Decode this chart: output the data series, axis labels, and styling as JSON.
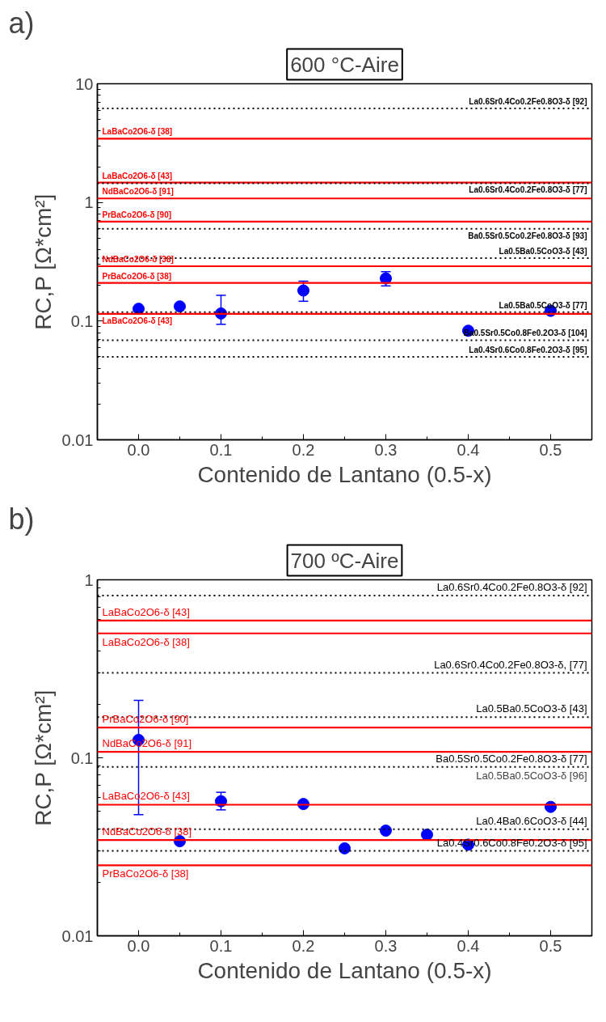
{
  "chart_data": [
    {
      "type": "scatter",
      "title": "600 °C-Aire",
      "xlabel": "Contenido de Lantano (0.5-x)",
      "ylabel": "RC,P [Ω*cm²]",
      "annotations": [
        "a)"
      ],
      "x": [
        0.0,
        0.05,
        0.1,
        0.2,
        0.3,
        0.4,
        0.5
      ],
      "series": [
        {
          "color": "#0000ff",
          "values": [
            0.127,
            0.133,
            0.116,
            0.181,
            0.229,
            0.083,
            0.122
          ],
          "errors": [
            null,
            null,
            [
              0.094,
              0.165
            ],
            [
              0.147,
              0.217
            ],
            [
              0.198,
              0.261
            ],
            null,
            null
          ]
        }
      ],
      "log": "y",
      "xlim": [
        -0.05,
        0.55
      ],
      "ylim": [
        0.01,
        10
      ],
      "xticks": [
        {
          "value": 0,
          "label": "0.0"
        },
        0.1,
        0.2,
        0.3,
        0.4,
        0.5
      ],
      "yticks": [
        0.01,
        0.1,
        1,
        10
      ],
      "grid": false,
      "marker": "circle",
      "ref_lines": [
        {
          "axis": "y",
          "value": 6.2,
          "label": "La0.6Sr0.4Co0.2Fe0.8O3-δ [92]",
          "color": "#000000",
          "line_style": "dotted"
        },
        {
          "axis": "y",
          "value": 3.45,
          "label": "LaBaCo2O6-δ [38]",
          "color": "#ff0000",
          "line_style": "solid"
        },
        {
          "axis": "y",
          "value": 1.47,
          "label": "LaBaCo2O6-δ [43]",
          "color": "#ff0000",
          "line_style": "solid"
        },
        {
          "axis": "y",
          "value": 1.45,
          "label": "La0.6Sr0.4Co0.2Fe0.8O3-δ [77]",
          "color": "#000000",
          "line_style": "dotted"
        },
        {
          "axis": "y",
          "value": 1.08,
          "label": "NdBaCo2O6-δ [91]",
          "color": "#ff0000",
          "line_style": "solid"
        },
        {
          "axis": "y",
          "value": 0.69,
          "label": "PrBaCo2O6-δ [90]",
          "color": "#ff0000",
          "line_style": "solid"
        },
        {
          "axis": "y",
          "value": 0.6,
          "label": "Ba0.5Sr0.5Co0.2Fe0.8O3-δ [93]",
          "color": "#000000",
          "line_style": "dotted"
        },
        {
          "axis": "y",
          "value": 0.34,
          "label": "La0.5Ba0.5CoO3-δ [43]",
          "color": "#000000",
          "line_style": "dotted"
        },
        {
          "axis": "y",
          "value": 0.29,
          "label": "NdBaCo2O6-δ [38]",
          "color": "#ff0000",
          "line_style": "solid"
        },
        {
          "axis": "y",
          "value": 0.21,
          "label": "PrBaCo2O6-δ [38]",
          "color": "#ff0000",
          "line_style": "solid"
        },
        {
          "axis": "y",
          "value": 0.119,
          "label": "La0.5Ba0.5CoO3-δ [77]",
          "color": "#000000",
          "line_style": "dotted"
        },
        {
          "axis": "y",
          "value": 0.115,
          "label": "LaBaCo2O6-δ [43]",
          "color": "#ff0000",
          "line_style": "solid"
        },
        {
          "axis": "y",
          "value": 0.069,
          "label": "Ba0.5Sr0.5Co0.8Fe0.2O3-δ [104]",
          "color": "#000000",
          "line_style": "dotted"
        },
        {
          "axis": "y",
          "value": 0.05,
          "label": "La0.4Sr0.6Co0.8Fe0.2O3-δ [95]",
          "color": "#000000",
          "line_style": "dotted"
        }
      ]
    },
    {
      "type": "scatter",
      "title": "700 ºC-Aire",
      "xlabel": "Contenido de Lantano (0.5-x)",
      "ylabel": "RC,P [Ω*cm²]",
      "annotations": [
        "b)",
        {
          "text": "La0.5Ba0.5CoO3-δ [96]",
          "x": 0.55,
          "y": 0.089
        }
      ],
      "x": [
        0.0,
        0.05,
        0.1,
        0.2,
        0.25,
        0.3,
        0.35,
        0.4,
        0.5
      ],
      "series": [
        {
          "color": "#0000ff",
          "values": [
            0.126,
            0.034,
            0.057,
            0.055,
            0.031,
            0.039,
            0.037,
            0.0325,
            0.053
          ],
          "errors": [
            [
              0.048,
              0.21
            ],
            null,
            [
              0.051,
              0.064
            ],
            null,
            null,
            null,
            null,
            null,
            null
          ]
        }
      ],
      "log": "y",
      "xlim": [
        -0.05,
        0.55
      ],
      "ylim": [
        0.01,
        1
      ],
      "xticks": [
        {
          "value": 0,
          "label": "0.0"
        },
        0.1,
        0.2,
        0.3,
        0.4,
        0.5
      ],
      "yticks": [
        0.01,
        0.1,
        1
      ],
      "grid": false,
      "marker": "circle",
      "ref_lines": [
        {
          "axis": "y",
          "value": 0.815,
          "label": "La0.6Sr0.4Co0.2Fe0.8O3-δ [92]",
          "color": "#000000",
          "line_style": "dotted"
        },
        {
          "axis": "y",
          "value": 0.59,
          "label": "LaBaCo2O6-δ [43]",
          "color": "#ff0000",
          "line_style": "solid"
        },
        {
          "axis": "y",
          "value": 0.5,
          "label": "LaBaCo2O6-δ [38]",
          "color": "#ff0000",
          "line_style": "solid"
        },
        {
          "axis": "y",
          "value": 0.3,
          "label": "La0.6Sr0.4Co0.2Fe0.8O3-δ, [77]",
          "color": "#000000",
          "line_style": "dotted"
        },
        {
          "axis": "y",
          "value": 0.169,
          "label": "La0.5Ba0.5CoO3-δ [43]",
          "color": "#000000",
          "line_style": "dotted"
        },
        {
          "axis": "y",
          "value": 0.148,
          "label": "PrBaCo2O6-δ [90]",
          "color": "#ff0000",
          "line_style": "solid"
        },
        {
          "axis": "y",
          "value": 0.108,
          "label": "NdBaCo2O6-δ [91]",
          "color": "#ff0000",
          "line_style": "solid"
        },
        {
          "axis": "y",
          "value": 0.089,
          "label": "Ba0.5Sr0.5Co0.2Fe0.8O3-δ [77]",
          "color": "#000000",
          "line_style": "dotted"
        },
        {
          "axis": "y",
          "value": 0.0545,
          "label": "LaBaCo2O6-δ [43]",
          "color": "#ff0000",
          "line_style": "solid"
        },
        {
          "axis": "y",
          "value": 0.0397,
          "label": "La0.4Ba0.6CoO3-δ [44]",
          "color": "#000000",
          "line_style": "dotted"
        },
        {
          "axis": "y",
          "value": 0.0345,
          "label": "NdBaCo2O6-δ [38]",
          "color": "#ff0000",
          "line_style": "solid"
        },
        {
          "axis": "y",
          "value": 0.03,
          "label": "La0.4Sr0.6Co0.8Fe0.2O3-δ [95]",
          "color": "#000000",
          "line_style": "dotted"
        },
        {
          "axis": "y",
          "value": 0.0249,
          "label": "PrBaCo2O6-δ [38]",
          "color": "#ff0000",
          "line_style": "solid"
        }
      ]
    }
  ]
}
